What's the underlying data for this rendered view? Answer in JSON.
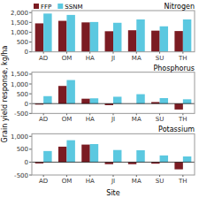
{
  "chart_data": [
    {
      "type": "bar",
      "title": "Nitrogen",
      "categories": [
        "AD",
        "OM",
        "HA",
        "JI",
        "MA",
        "SU",
        "TH"
      ],
      "series": [
        {
          "name": "FFP",
          "color": "#7b1c23",
          "values": [
            1450,
            1580,
            1500,
            1050,
            1100,
            1080,
            1060
          ]
        },
        {
          "name": "SSNM",
          "color": "#5bc8e0",
          "values": [
            1950,
            1880,
            1520,
            1480,
            1650,
            1300,
            1650
          ]
        }
      ],
      "ylim": [
        0,
        2100
      ],
      "yticks": [
        0,
        500,
        {
          "value": 1000,
          "label": "1,000"
        },
        {
          "value": 1500,
          "label": "1,500"
        },
        {
          "value": 2000,
          "label": "2,000"
        }
      ],
      "grid": false,
      "legend": "upper center"
    },
    {
      "type": "bar",
      "title": "Phosphorus",
      "ylabel": "Grain yield response, kg/ha",
      "categories": [
        "AD",
        "OM",
        "HA",
        "JI",
        "MA",
        "SU",
        "TH"
      ],
      "series": [
        {
          "name": "FFP",
          "color": "#7b1c23",
          "values": [
            -50,
            900,
            250,
            -80,
            0,
            80,
            -300
          ]
        },
        {
          "name": "SSNM",
          "color": "#5bc8e0",
          "values": [
            380,
            1200,
            270,
            350,
            480,
            280,
            220
          ]
        }
      ],
      "ylim": [
        -500,
        1600
      ],
      "yticks": [
        -500,
        0,
        500,
        {
          "value": 1000,
          "label": "1,000"
        },
        {
          "value": 1500,
          "label": "1,500"
        }
      ],
      "grid": false
    },
    {
      "type": "bar",
      "title": "Potassium",
      "xlabel": "Site",
      "categories": [
        "AD",
        "OM",
        "HA",
        "JI",
        "MA",
        "SU",
        "TH"
      ],
      "series": [
        {
          "name": "FFP",
          "color": "#7b1c23",
          "values": [
            -50,
            600,
            680,
            -80,
            -80,
            -60,
            -280
          ]
        },
        {
          "name": "SSNM",
          "color": "#5bc8e0",
          "values": [
            430,
            850,
            700,
            470,
            460,
            260,
            220
          ]
        }
      ],
      "ylim": [
        -500,
        1100
      ],
      "yticks": [
        -500,
        0,
        500,
        {
          "value": 1000,
          "label": "1,000"
        }
      ],
      "grid": false
    }
  ]
}
